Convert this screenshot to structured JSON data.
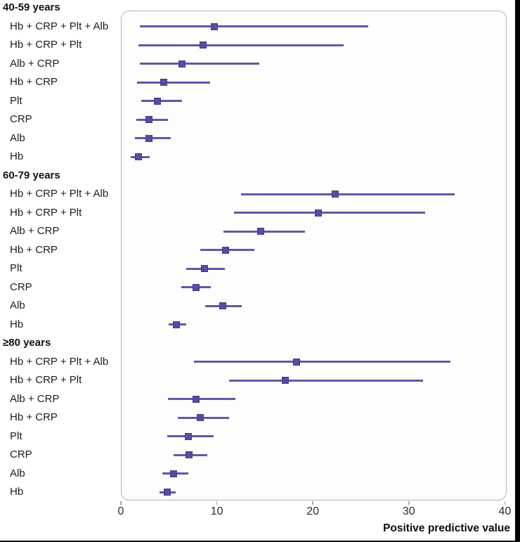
{
  "colors": {
    "accent_line": "#6059a7",
    "marker_fill": "#574da0",
    "marker_border": "#443b8e",
    "box_border": "#b3b3b3",
    "plot_background": "#fdfdfc",
    "page_background": "#fffffe",
    "text": "#111111",
    "frame_bar": "#000000"
  },
  "chart_data": {
    "type": "forest",
    "xlabel": "Positive predictive value",
    "xlim": [
      0,
      40
    ],
    "x_ticks": [
      0,
      10,
      20,
      30,
      40
    ],
    "grid": false,
    "legend": false,
    "marker": "square",
    "groups": [
      {
        "title": "40-59 years",
        "rows": [
          {
            "label": "Hb + CRP + Plt + Alb",
            "value": 9.7,
            "ci_low": 2.0,
            "ci_high": 25.8
          },
          {
            "label": "Hb + CRP + Plt",
            "value": 8.6,
            "ci_low": 1.8,
            "ci_high": 23.2
          },
          {
            "label": "Alb + CRP",
            "value": 6.4,
            "ci_low": 2.0,
            "ci_high": 14.4
          },
          {
            "label": "Hb + CRP",
            "value": 4.5,
            "ci_low": 1.7,
            "ci_high": 9.3
          },
          {
            "label": "Plt",
            "value": 3.8,
            "ci_low": 2.1,
            "ci_high": 6.4
          },
          {
            "label": "CRP",
            "value": 2.9,
            "ci_low": 1.6,
            "ci_high": 4.9
          },
          {
            "label": "Alb",
            "value": 2.9,
            "ci_low": 1.5,
            "ci_high": 5.2
          },
          {
            "label": "Hb",
            "value": 1.8,
            "ci_low": 1.0,
            "ci_high": 3.0
          }
        ]
      },
      {
        "title": "60-79 years",
        "rows": [
          {
            "label": "Hb + CRP + Plt + Alb",
            "value": 22.3,
            "ci_low": 12.5,
            "ci_high": 34.8
          },
          {
            "label": "Hb + CRP + Plt",
            "value": 20.6,
            "ci_low": 11.8,
            "ci_high": 31.7
          },
          {
            "label": "Alb + CRP",
            "value": 14.6,
            "ci_low": 10.7,
            "ci_high": 19.2
          },
          {
            "label": "Hb + CRP",
            "value": 10.9,
            "ci_low": 8.3,
            "ci_high": 13.9
          },
          {
            "label": "Plt",
            "value": 8.7,
            "ci_low": 6.8,
            "ci_high": 10.8
          },
          {
            "label": "CRP",
            "value": 7.8,
            "ci_low": 6.3,
            "ci_high": 9.4
          },
          {
            "label": "Alb",
            "value": 10.6,
            "ci_low": 8.8,
            "ci_high": 12.6
          },
          {
            "label": "Hb",
            "value": 5.8,
            "ci_low": 5.0,
            "ci_high": 6.8
          }
        ]
      },
      {
        "title": "≥80 years",
        "rows": [
          {
            "label": "Hb + CRP + Plt + Alb",
            "value": 18.3,
            "ci_low": 7.6,
            "ci_high": 34.3
          },
          {
            "label": "Hb + CRP + Plt",
            "value": 17.1,
            "ci_low": 11.3,
            "ci_high": 31.5
          },
          {
            "label": "Alb + CRP",
            "value": 7.8,
            "ci_low": 4.9,
            "ci_high": 11.9
          },
          {
            "label": "Hb + CRP",
            "value": 8.3,
            "ci_low": 5.9,
            "ci_high": 11.3
          },
          {
            "label": "Plt",
            "value": 7.0,
            "ci_low": 4.8,
            "ci_high": 9.7
          },
          {
            "label": "CRP",
            "value": 7.1,
            "ci_low": 5.5,
            "ci_high": 9.0
          },
          {
            "label": "Alb",
            "value": 5.5,
            "ci_low": 4.3,
            "ci_high": 7.0
          },
          {
            "label": "Hb",
            "value": 4.8,
            "ci_low": 4.0,
            "ci_high": 5.7
          }
        ]
      }
    ]
  }
}
